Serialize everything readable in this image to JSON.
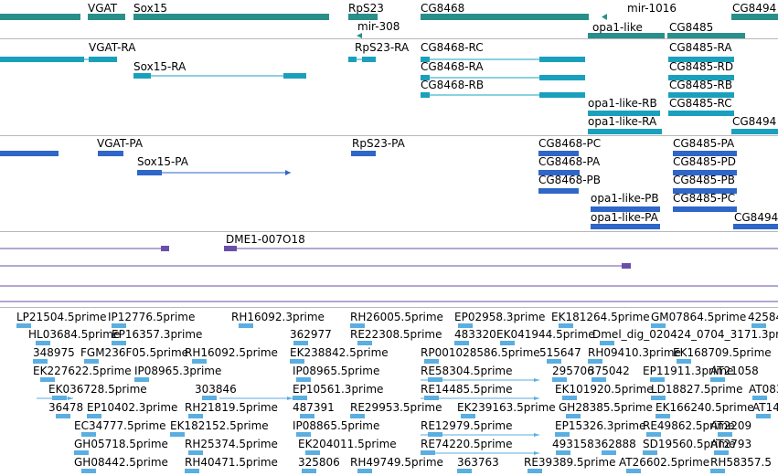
{
  "gene_track": {
    "color": "#2a8f8a",
    "labels": [
      "VGAT",
      "Sox15",
      "RpS23",
      "CG8468",
      "mir-1016",
      "CG8494",
      "mir-308",
      "opa1-like",
      "CG8485"
    ]
  },
  "transcript_track": {
    "color": "#1aa0bc",
    "labels": [
      "VGAT-RA",
      "RpS23-RA",
      "CG8468-RC",
      "CG8485-RA",
      "Sox15-RA",
      "CG8468-RA",
      "CG8485-RD",
      "CG8468-RB",
      "CG8485-RB",
      "opa1-like-RB",
      "CG8485-RC",
      "opa1-like-RA",
      "CG8494"
    ]
  },
  "protein_track": {
    "color": "#2f66c8",
    "labels": [
      "VGAT-PA",
      "RpS23-PA",
      "CG8468-PC",
      "CG8485-PA",
      "Sox15-PA",
      "CG8468-PA",
      "CG8485-PD",
      "CG8468-PB",
      "CG8485-PB",
      "opa1-like-PB",
      "CG8485-PC",
      "opa1-like-PA",
      "CG8494"
    ]
  },
  "variant_track": {
    "color": "#6a4fa8",
    "labels": [
      "DME1-007O18"
    ]
  },
  "est_track": {
    "color": "#5aaee0",
    "labels": [
      "LP21504.5prime",
      "IP12776.5prime",
      "RH16092.3prime",
      "RH26005.5prime",
      "EP02958.3prime",
      "EK181264.5prime",
      "GM07864.5prime",
      "42584",
      "HL03684.5prime",
      "EP16357.3prime",
      "362977",
      "RE22308.5prime",
      "483320",
      "EK041944.5prime",
      "Dmel_dig_020424_0704_3171.3prime",
      "348975",
      "FGM236F05.5prime",
      "RH16092.5prime",
      "EK238842.5prime",
      "RP001028586.5prime",
      "515647",
      "RH09410.3prime",
      "EK168709.5prime",
      "EK227622.5prime",
      "IP08965.3prime",
      "IP08965.5prime",
      "RE58304.5prime",
      "295706",
      "375042",
      "EP11911.3prime",
      "AT21058",
      "EK036728.5prime",
      "303846",
      "EP10561.3prime",
      "RE14485.5prime",
      "EK101920.5prime",
      "LD18827.5prime",
      "AT083",
      "36478",
      "EP10402.3prime",
      "RH21819.5prime",
      "487391",
      "RE29953.5prime",
      "EK239163.5prime",
      "GH28385.5prime",
      "EK166240.5prime",
      "AT14",
      "EC34777.5prime",
      "EK182152.5prime",
      "IP08865.5prime",
      "RE12979.5prime",
      "EP15326.3prime",
      "RE49862.5prime",
      "AT2209",
      "GH05718.5prime",
      "RH25374.5prime",
      "EK204011.5prime",
      "RE74220.5prime",
      "493158",
      "362888",
      "SD19560.5prime",
      "AT2793",
      "GH08442.5prime",
      "RH40471.5prime",
      "325806",
      "RH49749.5prime",
      "363763",
      "RE39389.5prime",
      "AT26602.5prime",
      "RH58357.5"
    ]
  }
}
